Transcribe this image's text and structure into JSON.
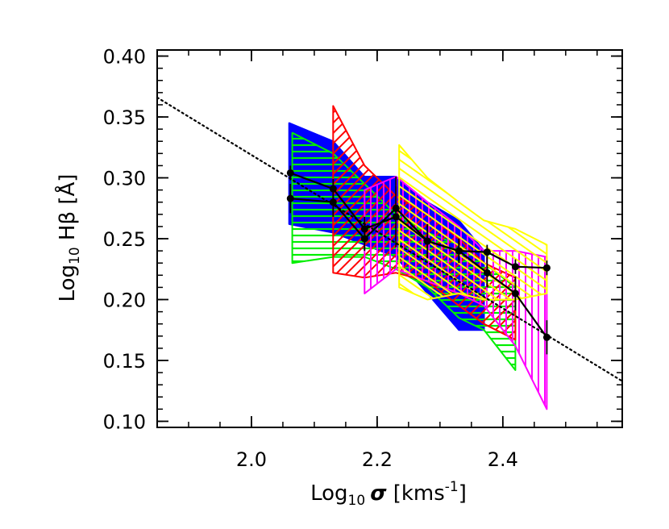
{
  "chart_data": {
    "type": "line",
    "xlabel": {
      "base": "Log",
      "sub": "10",
      "symbol": "σ",
      "unit_open": " [kms",
      "unit_sup": "-1",
      "unit_close": "]"
    },
    "ylabel": {
      "base": "Log",
      "sub": "10",
      "symbol": " Hβ",
      "unit": " [Å]"
    },
    "xlim": [
      1.85,
      2.59
    ],
    "ylim": [
      0.095,
      0.405
    ],
    "xticks": [
      {
        "value": 2.0,
        "label": "2.0"
      },
      {
        "value": 2.2,
        "label": "2.2"
      },
      {
        "value": 2.4,
        "label": "2.4"
      }
    ],
    "yticks": [
      {
        "value": 0.1,
        "label": "0.10"
      },
      {
        "value": 0.15,
        "label": "0.15"
      },
      {
        "value": 0.2,
        "label": "0.20"
      },
      {
        "value": 0.25,
        "label": "0.25"
      },
      {
        "value": 0.3,
        "label": "0.30"
      },
      {
        "value": 0.35,
        "label": "0.35"
      },
      {
        "value": 0.4,
        "label": "0.40"
      }
    ],
    "grid": false,
    "fit_line": {
      "style": "dotted",
      "x": [
        1.85,
        2.59
      ],
      "y": [
        0.366,
        0.133
      ]
    },
    "bands": [
      {
        "color": "#0000ff",
        "fill": "solid",
        "upper": [
          [
            2.06,
            0.345
          ],
          [
            2.13,
            0.33
          ],
          [
            2.18,
            0.301
          ],
          [
            2.23,
            0.301
          ],
          [
            2.28,
            0.28
          ],
          [
            2.33,
            0.265
          ],
          [
            2.37,
            0.24
          ]
        ],
        "lower": [
          [
            2.06,
            0.262
          ],
          [
            2.13,
            0.255
          ],
          [
            2.18,
            0.245
          ],
          [
            2.23,
            0.235
          ],
          [
            2.28,
            0.205
          ],
          [
            2.33,
            0.175
          ],
          [
            2.37,
            0.175
          ]
        ]
      },
      {
        "color": "#00ee00",
        "fill": "horizontal-hatch",
        "upper": [
          [
            2.065,
            0.337
          ],
          [
            2.13,
            0.32
          ],
          [
            2.18,
            0.295
          ],
          [
            2.23,
            0.27
          ],
          [
            2.28,
            0.255
          ],
          [
            2.33,
            0.245
          ],
          [
            2.37,
            0.23
          ],
          [
            2.42,
            0.21
          ]
        ],
        "lower": [
          [
            2.065,
            0.23
          ],
          [
            2.13,
            0.235
          ],
          [
            2.18,
            0.235
          ],
          [
            2.23,
            0.225
          ],
          [
            2.28,
            0.21
          ],
          [
            2.33,
            0.185
          ],
          [
            2.37,
            0.175
          ],
          [
            2.42,
            0.142
          ]
        ]
      },
      {
        "color": "#ff0000",
        "fill": "diagonal-hatch",
        "upper": [
          [
            2.13,
            0.359
          ],
          [
            2.18,
            0.31
          ],
          [
            2.23,
            0.285
          ],
          [
            2.28,
            0.27
          ],
          [
            2.33,
            0.25
          ],
          [
            2.37,
            0.23
          ],
          [
            2.42,
            0.218
          ]
        ],
        "lower": [
          [
            2.13,
            0.222
          ],
          [
            2.18,
            0.218
          ],
          [
            2.23,
            0.222
          ],
          [
            2.28,
            0.215
          ],
          [
            2.33,
            0.195
          ],
          [
            2.37,
            0.18
          ],
          [
            2.42,
            0.167
          ]
        ]
      },
      {
        "color": "#ff00ff",
        "fill": "vertical-hatch",
        "upper": [
          [
            2.18,
            0.29
          ],
          [
            2.23,
            0.301
          ],
          [
            2.28,
            0.28
          ],
          [
            2.33,
            0.26
          ],
          [
            2.37,
            0.24
          ],
          [
            2.42,
            0.24
          ],
          [
            2.47,
            0.235
          ]
        ],
        "lower": [
          [
            2.18,
            0.205
          ],
          [
            2.23,
            0.225
          ],
          [
            2.28,
            0.215
          ],
          [
            2.33,
            0.205
          ],
          [
            2.37,
            0.195
          ],
          [
            2.42,
            0.162
          ],
          [
            2.47,
            0.11
          ]
        ]
      },
      {
        "color": "#ffff00",
        "fill": "diagonal-hatch-reverse",
        "upper": [
          [
            2.235,
            0.327
          ],
          [
            2.28,
            0.3
          ],
          [
            2.33,
            0.28
          ],
          [
            2.37,
            0.265
          ],
          [
            2.42,
            0.258
          ],
          [
            2.47,
            0.245
          ]
        ],
        "lower": [
          [
            2.235,
            0.21
          ],
          [
            2.28,
            0.2
          ],
          [
            2.33,
            0.205
          ],
          [
            2.37,
            0.2
          ],
          [
            2.42,
            0.2
          ],
          [
            2.47,
            0.205
          ]
        ]
      }
    ],
    "series": [
      {
        "color": "#000000",
        "points": [
          {
            "x": 2.062,
            "y": 0.304,
            "err": 0.006
          },
          {
            "x": 2.13,
            "y": 0.291,
            "err": 0.008
          },
          {
            "x": 2.18,
            "y": 0.258,
            "err": 0.01
          },
          {
            "x": 2.23,
            "y": 0.268,
            "err": 0.025
          },
          {
            "x": 2.28,
            "y": 0.248,
            "err": 0.014
          },
          {
            "x": 2.33,
            "y": 0.24,
            "err": 0.008
          },
          {
            "x": 2.375,
            "y": 0.239,
            "err": 0.006
          },
          {
            "x": 2.42,
            "y": 0.227,
            "err": 0.006
          },
          {
            "x": 2.47,
            "y": 0.226,
            "err": 0.006
          }
        ]
      },
      {
        "color": "#000000",
        "points": [
          {
            "x": 2.062,
            "y": 0.283,
            "err": 0.012
          },
          {
            "x": 2.13,
            "y": 0.28,
            "err": 0.012
          },
          {
            "x": 2.18,
            "y": 0.25,
            "err": 0.01
          },
          {
            "x": 2.23,
            "y": 0.275,
            "err": 0.026
          },
          {
            "x": 2.28,
            "y": 0.248,
            "err": 0.014
          },
          {
            "x": 2.33,
            "y": 0.24,
            "err": 0.01
          },
          {
            "x": 2.375,
            "y": 0.222,
            "err": 0.012
          },
          {
            "x": 2.42,
            "y": 0.205,
            "err": 0.014
          },
          {
            "x": 2.47,
            "y": 0.169,
            "err": 0.014
          }
        ]
      }
    ]
  }
}
